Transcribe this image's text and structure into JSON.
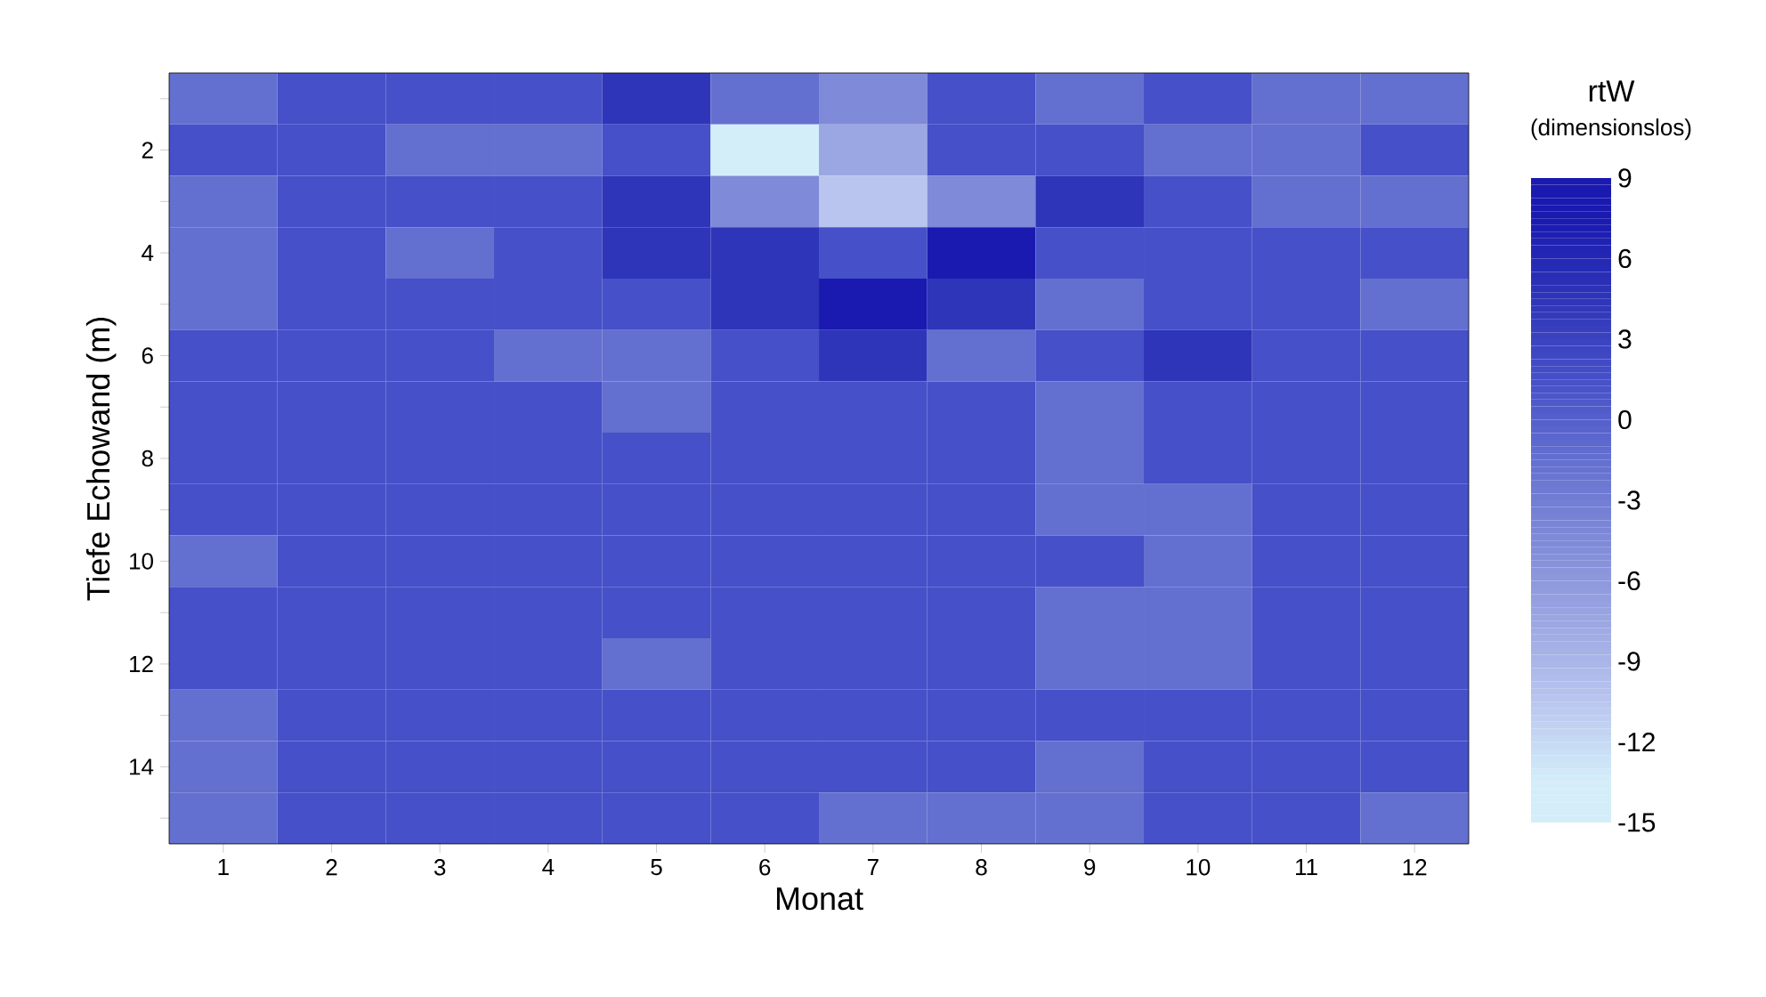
{
  "chart_data": {
    "type": "heatmap",
    "xlabel": "Monat",
    "ylabel": "Tiefe Echowand (m)",
    "clabel": "rtW",
    "annotations": [
      "(dimensionslos)"
    ],
    "categories": [
      "1",
      "2",
      "3",
      "4",
      "5",
      "6",
      "7",
      "8",
      "9",
      "10",
      "11",
      "12"
    ],
    "y_categories": [
      null,
      "2",
      null,
      "4",
      null,
      "6",
      null,
      "8",
      null,
      "10",
      null,
      "12",
      null,
      "14",
      null
    ],
    "cells": [
      [
        -1.5,
        1.5,
        1.5,
        1.5,
        4.5,
        -1.5,
        -4.5,
        1.5,
        -1.5,
        1.5,
        -1.5,
        -1.5
      ],
      [
        1.5,
        1.5,
        -1.5,
        -1.5,
        1.5,
        -13.5,
        -7.5,
        1.5,
        1.5,
        -1.5,
        -1.5,
        1.5
      ],
      [
        -1.5,
        1.5,
        1.5,
        1.5,
        4.5,
        -4.5,
        -10.5,
        -4.5,
        4.5,
        1.5,
        -1.5,
        -1.5
      ],
      [
        -1.5,
        1.5,
        -1.5,
        1.5,
        4.5,
        4.5,
        1.5,
        7.5,
        1.5,
        1.5,
        1.5,
        1.5
      ],
      [
        -1.5,
        1.5,
        1.5,
        1.5,
        1.5,
        4.5,
        7.5,
        4.5,
        -1.5,
        1.5,
        1.5,
        -1.5
      ],
      [
        1.5,
        1.5,
        1.5,
        -1.5,
        -1.5,
        1.5,
        4.5,
        -1.5,
        1.5,
        4.5,
        1.5,
        1.5
      ],
      [
        1.5,
        1.5,
        1.5,
        1.5,
        -1.5,
        1.5,
        1.5,
        1.5,
        -1.5,
        1.5,
        1.5,
        1.5
      ],
      [
        1.5,
        1.5,
        1.5,
        1.5,
        1.5,
        1.5,
        1.5,
        1.5,
        -1.5,
        1.5,
        1.5,
        1.5
      ],
      [
        1.5,
        1.5,
        1.5,
        1.5,
        1.5,
        1.5,
        1.5,
        1.5,
        -1.5,
        -1.5,
        1.5,
        1.5
      ],
      [
        -1.5,
        1.5,
        1.5,
        1.5,
        1.5,
        1.5,
        1.5,
        1.5,
        1.5,
        -1.5,
        1.5,
        1.5
      ],
      [
        1.5,
        1.5,
        1.5,
        1.5,
        1.5,
        1.5,
        1.5,
        1.5,
        -1.5,
        -1.5,
        1.5,
        1.5
      ],
      [
        1.5,
        1.5,
        1.5,
        1.5,
        -1.5,
        1.5,
        1.5,
        1.5,
        -1.5,
        -1.5,
        1.5,
        1.5
      ],
      [
        -1.5,
        1.5,
        1.5,
        1.5,
        1.5,
        1.5,
        1.5,
        1.5,
        1.5,
        1.5,
        1.5,
        1.5
      ],
      [
        -1.5,
        1.5,
        1.5,
        1.5,
        1.5,
        1.5,
        1.5,
        1.5,
        -1.5,
        1.5,
        1.5,
        1.5
      ],
      [
        -1.5,
        1.5,
        1.5,
        1.5,
        1.5,
        1.5,
        -1.5,
        -1.5,
        -1.5,
        1.5,
        1.5,
        -1.5
      ]
    ],
    "clim": [
      -15,
      9
    ],
    "cticks": [
      -15,
      -12,
      -9,
      -6,
      -3,
      0,
      3,
      6,
      9
    ],
    "colors": [
      "#d4eef9",
      "#b9c5ee",
      "#9ba7e2",
      "#7f8ad8",
      "#6470d0",
      "#4650c8",
      "#2e35b8",
      "#1a1ab0"
    ]
  }
}
